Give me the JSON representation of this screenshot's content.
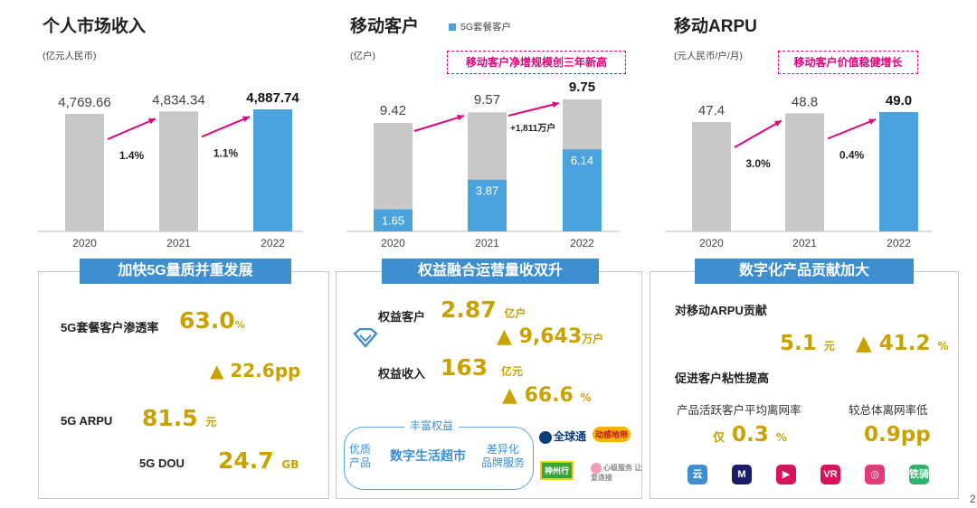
{
  "chart_data": [
    {
      "type": "bar",
      "title": "个人市场收入",
      "unit": "(亿元人民币)",
      "categories": [
        "2020",
        "2021",
        "2022"
      ],
      "values": [
        4769.66,
        4834.34,
        4887.74
      ],
      "value_labels": [
        "4,769.66",
        "4,834.34",
        "4,887.74"
      ],
      "growth_labels": [
        "1.4%",
        "1.1%"
      ],
      "ylim": [
        0,
        5000
      ],
      "colors": [
        "#c8c8c8",
        "#c8c8c8",
        "#4aa3dc"
      ]
    },
    {
      "type": "bar",
      "title": "移动客户",
      "unit": "(亿户)",
      "legend": "5G套餐客户",
      "callout": "移动客户净增规模创三年新高",
      "categories": [
        "2020",
        "2021",
        "2022"
      ],
      "series": [
        {
          "name": "5G套餐客户",
          "values": [
            1.65,
            3.87,
            6.14
          ],
          "labels": [
            "1.65",
            "3.87",
            "6.14"
          ],
          "color": "#4aa3dc"
        },
        {
          "name": "移动客户",
          "values": [
            9.42,
            9.57,
            9.75
          ],
          "labels": [
            "9.42",
            "9.57",
            "9.75"
          ],
          "color": "#c8c8c8"
        }
      ],
      "annotation": "+1,811万户",
      "ylim": [
        0,
        10
      ]
    },
    {
      "type": "bar",
      "title": "移动ARPU",
      "unit": "(元人民币/户/月)",
      "callout": "移动客户价值稳健增长",
      "categories": [
        "2020",
        "2021",
        "2022"
      ],
      "values": [
        47.4,
        48.8,
        49.0
      ],
      "value_labels": [
        "47.4",
        "48.8",
        "49.0"
      ],
      "growth_labels": [
        "3.0%",
        "0.4%"
      ],
      "ylim": [
        0,
        50
      ],
      "colors": [
        "#c8c8c8",
        "#c8c8c8",
        "#4aa3dc"
      ]
    }
  ],
  "panel1": {
    "banner": "加快5G量质并重发展",
    "penetration_label": "5G套餐客户渗透率",
    "penetration_value": "63.0",
    "penetration_unit": "%",
    "penetration_change": "22.6pp",
    "arpu_label": "5G ARPU",
    "arpu_value": "81.5",
    "arpu_unit": "元",
    "dou_label": "5G DOU",
    "dou_value": "24.7",
    "dou_unit": "GB"
  },
  "panel2": {
    "banner": "权益融合运营量收双升",
    "customers_label": "权益客户",
    "customers_value": "2.87",
    "customers_unit": "亿户",
    "customers_change": "9,643",
    "customers_change_unit": "万户",
    "revenue_label": "权益收入",
    "revenue_value": "163",
    "revenue_unit": "亿元",
    "revenue_change": "66.6",
    "revenue_change_unit": "%",
    "supermarket": "数字生活超市",
    "left_text": "优质\n产品",
    "top_text": "丰富权益",
    "right_text": "差异化\n品牌服务",
    "logos": [
      "全球通",
      "动感地带",
      "神州行",
      "心级服务 让爱连接"
    ]
  },
  "panel3": {
    "banner": "数字化产品贡献加大",
    "arpu_contrib_label": "对移动ARPU贡献",
    "arpu_contrib_value": "5.1",
    "arpu_contrib_unit": "元",
    "arpu_contrib_change": "41.2",
    "arpu_contrib_change_unit": "%",
    "stickiness_label": "促进客户粘性提高",
    "churn_label": "产品活跃客户平均离网率",
    "churn_compare_label": "较总体离网率低",
    "churn_prefix": "仅",
    "churn_value": "0.3",
    "churn_unit": "%",
    "churn_gap": "0.9pp",
    "apps": [
      "云",
      "M",
      "▶",
      "VR",
      "◎",
      "铁骑"
    ],
    "app_colors": [
      "#3d8fd1",
      "#1c1c6a",
      "#d8125b",
      "#d8125b",
      "#e83a7a",
      "#2fb36b"
    ]
  },
  "page_number": "2",
  "accent_color": "#e6007e",
  "gold_color": "#c9a200",
  "blue_color": "#3d8fd1"
}
